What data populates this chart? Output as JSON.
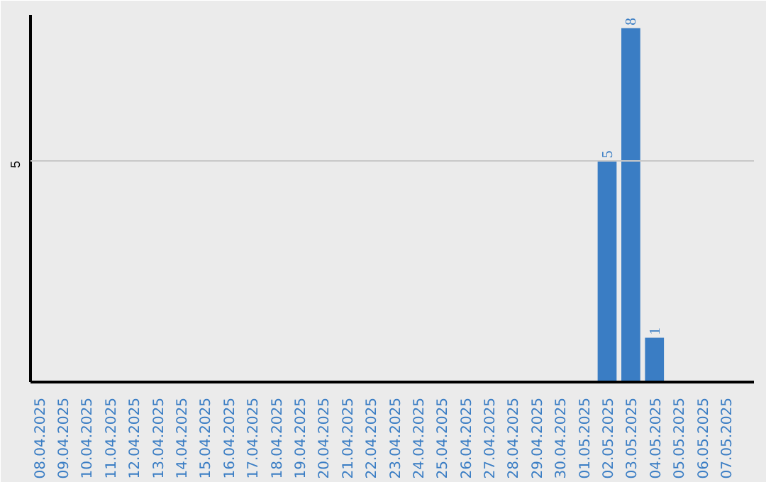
{
  "chart_data": {
    "type": "bar",
    "categories": [
      "08.04.2025",
      "09.04.2025",
      "10.04.2025",
      "11.04.2025",
      "12.04.2025",
      "13.04.2025",
      "14.04.2025",
      "15.04.2025",
      "16.04.2025",
      "17.04.2025",
      "18.04.2025",
      "19.04.2025",
      "20.04.2025",
      "21.04.2025",
      "22.04.2025",
      "23.04.2025",
      "24.04.2025",
      "25.04.2025",
      "26.04.2025",
      "27.04.2025",
      "28.04.2025",
      "29.04.2025",
      "30.04.2025",
      "01.05.2025",
      "02.05.2025",
      "03.05.2025",
      "04.05.2025",
      "05.05.2025",
      "06.05.2025",
      "07.05.2025"
    ],
    "values": [
      null,
      null,
      null,
      null,
      null,
      null,
      null,
      null,
      null,
      null,
      null,
      null,
      null,
      null,
      null,
      null,
      null,
      null,
      null,
      null,
      null,
      null,
      null,
      null,
      5,
      8,
      1,
      null,
      null,
      null
    ],
    "data_labels": true,
    "ylim": [
      0,
      8.3
    ],
    "color": "#3a7dc4",
    "ref_lines": [
      {
        "axis": "y",
        "value": 5,
        "label": "5",
        "color": "#c8c8c8"
      }
    ]
  }
}
